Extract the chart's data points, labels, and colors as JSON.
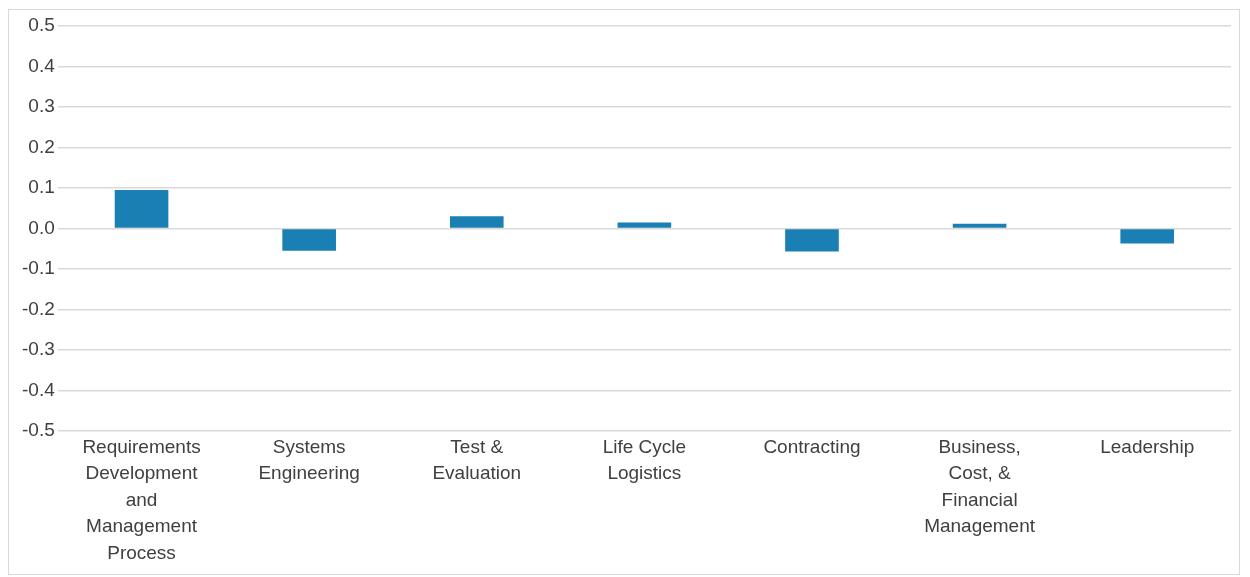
{
  "chart_data": {
    "type": "bar",
    "categories": [
      "Requirements Development and Management Process",
      "Systems Engineering",
      "Test & Evaluation",
      "Life Cycle Logistics",
      "Contracting",
      "Business, Cost, & Financial Management",
      "Leadership"
    ],
    "values": [
      0.095,
      -0.055,
      0.03,
      0.015,
      -0.057,
      0.012,
      -0.037
    ],
    "color": "#1a7fb3",
    "ylim": [
      -0.5,
      0.5
    ],
    "yticks": [
      -0.5,
      -0.4,
      -0.3,
      -0.2,
      -0.1,
      {
        "value": 0,
        "label": "0.0"
      },
      0.1,
      0.2,
      0.3,
      0.4,
      0.5
    ],
    "grid": "y"
  }
}
